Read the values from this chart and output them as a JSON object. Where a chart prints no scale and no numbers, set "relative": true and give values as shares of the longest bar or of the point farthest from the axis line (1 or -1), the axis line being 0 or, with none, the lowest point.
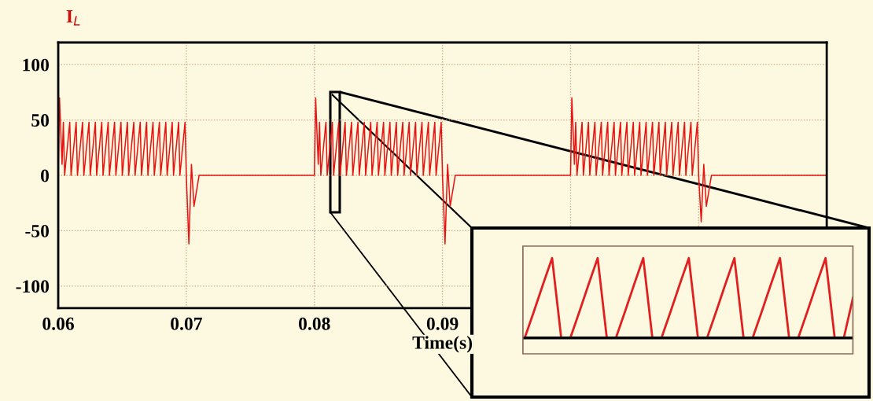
{
  "chart_data": [
    {
      "type": "line",
      "ylabel": "I$_{L}$",
      "xlabel": "Time(s)",
      "xlim": [
        0.06,
        0.12
      ],
      "ylim": [
        -120,
        120
      ],
      "xticks": [
        0.06,
        0.07,
        0.08,
        0.09,
        {
          "value": 0.1,
          "label": null
        },
        {
          "value": 0.11,
          "label": null
        }
      ],
      "yticks": [
        -100,
        -50,
        0,
        50,
        100
      ],
      "grid": true,
      "x": [
        0.06,
        0.0601,
        0.0603,
        0.0604,
        0.0605,
        0.0609,
        0.061,
        0.0614,
        0.0615,
        0.0619,
        0.062,
        0.0624,
        0.0625,
        0.0629,
        0.063,
        0.0634,
        0.0635,
        0.0639,
        0.064,
        0.0644,
        0.0645,
        0.0649,
        0.065,
        0.0654,
        0.0655,
        0.0659,
        0.066,
        0.0664,
        0.0665,
        0.0669,
        0.067,
        0.0674,
        0.0675,
        0.0679,
        0.068,
        0.0684,
        0.0685,
        0.0689,
        0.069,
        0.0694,
        0.0695,
        0.0699,
        0.07,
        0.0702,
        0.0704,
        0.0706,
        0.071,
        0.08,
        0.0801,
        0.0803,
        0.0804,
        0.0805,
        0.0809,
        0.081,
        0.0814,
        0.0815,
        0.0819,
        0.082,
        0.0824,
        0.0825,
        0.0829,
        0.083,
        0.0834,
        0.0835,
        0.0839,
        0.084,
        0.0844,
        0.0845,
        0.0849,
        0.085,
        0.0854,
        0.0855,
        0.0859,
        0.086,
        0.0864,
        0.0865,
        0.0869,
        0.087,
        0.0874,
        0.0875,
        0.0879,
        0.088,
        0.0884,
        0.0885,
        0.0889,
        0.089,
        0.0894,
        0.0895,
        0.0899,
        0.09,
        0.0902,
        0.0904,
        0.0906,
        0.091,
        0.1,
        0.1001,
        0.1003,
        0.1004,
        0.1005,
        0.1009,
        0.101,
        0.1014,
        0.1015,
        0.1019,
        0.102,
        0.1024,
        0.1025,
        0.1029,
        0.103,
        0.1034,
        0.1035,
        0.1039,
        0.104,
        0.1044,
        0.1045,
        0.1049,
        0.105,
        0.1054,
        0.1055,
        0.1059,
        0.106,
        0.1064,
        0.1065,
        0.1069,
        0.107,
        0.1074,
        0.1075,
        0.1079,
        0.108,
        0.1084,
        0.1085,
        0.1089,
        0.109,
        0.1094,
        0.1095,
        0.1099,
        0.11,
        0.1102,
        0.1104,
        0.1106,
        0.111,
        0.12
      ],
      "series": [
        {
          "color": "#e81414",
          "values": [
            0,
            70,
            10,
            48,
            0,
            48,
            0,
            48,
            0,
            48,
            0,
            48,
            0,
            48,
            0,
            48,
            0,
            48,
            0,
            48,
            0,
            48,
            0,
            48,
            0,
            48,
            0,
            48,
            0,
            48,
            0,
            48,
            0,
            48,
            0,
            48,
            0,
            48,
            0,
            48,
            0,
            48,
            0,
            -62,
            10,
            -28,
            0,
            0,
            70,
            10,
            48,
            0,
            48,
            0,
            48,
            0,
            48,
            0,
            48,
            0,
            48,
            0,
            48,
            0,
            48,
            0,
            48,
            0,
            48,
            0,
            48,
            0,
            48,
            0,
            48,
            0,
            48,
            0,
            48,
            0,
            48,
            0,
            48,
            0,
            48,
            0,
            48,
            0,
            48,
            0,
            -62,
            10,
            -28,
            0,
            0,
            70,
            10,
            48,
            0,
            48,
            0,
            48,
            0,
            48,
            0,
            48,
            0,
            48,
            0,
            48,
            0,
            48,
            0,
            48,
            0,
            48,
            0,
            48,
            0,
            48,
            0,
            48,
            0,
            48,
            0,
            48,
            0,
            48,
            0,
            48,
            0,
            48,
            0,
            48,
            0,
            48,
            0,
            -42,
            10,
            -28,
            0,
            0
          ]
        }
      ]
    },
    {
      "type": "line",
      "relative": true,
      "categories": [
        null,
        null,
        null,
        null,
        null,
        null,
        null,
        null,
        null,
        null,
        null,
        null,
        null,
        null,
        null,
        null,
        null,
        null,
        null,
        null,
        null,
        null,
        null,
        null,
        null,
        null,
        null,
        null,
        null,
        null,
        null,
        null,
        null,
        null,
        null,
        null,
        null
      ],
      "series": [
        {
          "color": "#e02020",
          "values": [
            0,
            0.33,
            0.67,
            1,
            0,
            0,
            0.33,
            0.67,
            1,
            0,
            0,
            0.33,
            0.67,
            1,
            0,
            0,
            0.33,
            0.67,
            1,
            0,
            0,
            0.33,
            0.67,
            1,
            0,
            0,
            0.33,
            0.67,
            1,
            0,
            0,
            0.33,
            0.67,
            1,
            0,
            0,
            0.5
          ]
        }
      ]
    }
  ]
}
